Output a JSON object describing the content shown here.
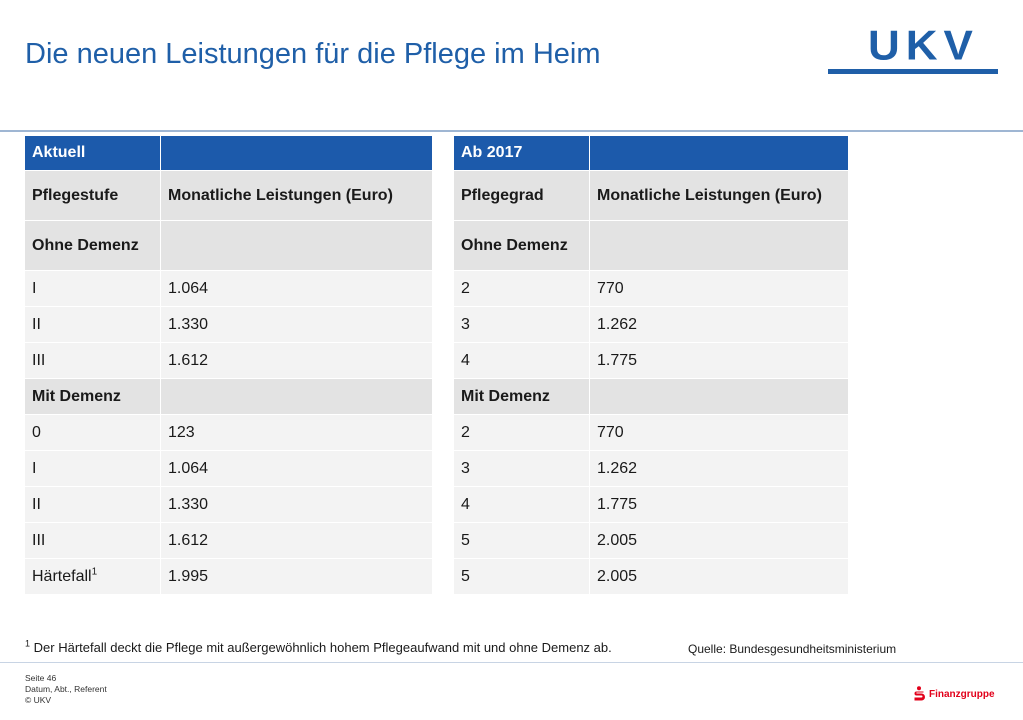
{
  "title": "Die neuen Leistungen für die Pflege im Heim",
  "logo": {
    "text": "UKV",
    "color": "#1f5fa8"
  },
  "colors": {
    "header_bg": "#1c5aab",
    "sub_bg": "#e3e3e3",
    "row_bg": "#f3f3f3",
    "title": "#1f5fa8"
  },
  "left_table": {
    "header": [
      "Aktuell",
      ""
    ],
    "subheader": [
      "Pflegestufe",
      "Monatliche Leistungen (Euro)"
    ],
    "section1": [
      "Ohne Demenz",
      ""
    ],
    "rows1": [
      [
        "I",
        "1.064"
      ],
      [
        "II",
        "1.330"
      ],
      [
        "III",
        "1.612"
      ]
    ],
    "section2": [
      "Mit Demenz",
      ""
    ],
    "rows2": [
      [
        "0",
        "123"
      ],
      [
        "I",
        "1.064"
      ],
      [
        "II",
        "1.330"
      ],
      [
        "III",
        "1.612"
      ]
    ],
    "last_row": {
      "label": "Härtefall",
      "sup": "1",
      "value": "1.995"
    }
  },
  "right_table": {
    "header": [
      "Ab 2017",
      ""
    ],
    "subheader": [
      "Pflegegrad",
      "Monatliche Leistungen (Euro)"
    ],
    "section1": [
      "Ohne Demenz",
      ""
    ],
    "rows1": [
      [
        "2",
        "770"
      ],
      [
        "3",
        "1.262"
      ],
      [
        "4",
        "1.775"
      ]
    ],
    "section2": [
      "Mit Demenz",
      ""
    ],
    "rows2": [
      [
        "2",
        "770"
      ],
      [
        "3",
        "1.262"
      ],
      [
        "4",
        "1.775"
      ],
      [
        "5",
        "2.005"
      ]
    ],
    "last_row": {
      "label": "5",
      "value": "2.005"
    }
  },
  "footnote": {
    "sup": "1",
    "text": "Der Härtefall deckt die Pflege mit außergewöhnlich hohem Pflegeaufwand mit und ohne Demenz ab."
  },
  "source": "Quelle: Bundesgesundheitsministerium",
  "meta": {
    "page": "Seite 46",
    "line2": "Datum, Abt., Referent",
    "copyright": "© UKV"
  },
  "brand": {
    "text": "Finanzgruppe",
    "icon": "sparkasse-s-icon"
  }
}
